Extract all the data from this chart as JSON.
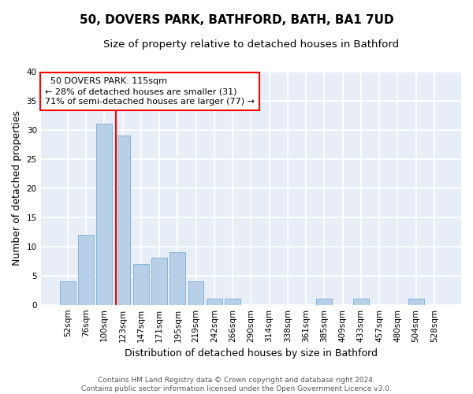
{
  "title1": "50, DOVERS PARK, BATHFORD, BATH, BA1 7UD",
  "title2": "Size of property relative to detached houses in Bathford",
  "xlabel": "Distribution of detached houses by size in Bathford",
  "ylabel": "Number of detached properties",
  "bar_color": "#b8cfe8",
  "bar_edge_color": "#7aadd4",
  "background_color": "#e8eef8",
  "grid_color": "#ffffff",
  "categories": [
    "52sqm",
    "76sqm",
    "100sqm",
    "123sqm",
    "147sqm",
    "171sqm",
    "195sqm",
    "219sqm",
    "242sqm",
    "266sqm",
    "290sqm",
    "314sqm",
    "338sqm",
    "361sqm",
    "385sqm",
    "409sqm",
    "433sqm",
    "457sqm",
    "480sqm",
    "504sqm",
    "528sqm"
  ],
  "values": [
    4,
    12,
    31,
    29,
    7,
    8,
    9,
    4,
    1,
    1,
    0,
    0,
    0,
    0,
    1,
    0,
    1,
    0,
    0,
    1,
    0
  ],
  "ylim": [
    0,
    40
  ],
  "yticks": [
    0,
    5,
    10,
    15,
    20,
    25,
    30,
    35,
    40
  ],
  "property_label": "50 DOVERS PARK: 115sqm",
  "pct_smaller": 28,
  "n_smaller": 31,
  "pct_larger": 71,
  "n_larger": 77,
  "footer_text": "Contains HM Land Registry data © Crown copyright and database right 2024.\nContains public sector information licensed under the Open Government Licence v3.0.",
  "title_fontsize": 11,
  "subtitle_fontsize": 9.5,
  "axis_label_fontsize": 9,
  "tick_fontsize": 7.5,
  "ann_fontsize": 8
}
